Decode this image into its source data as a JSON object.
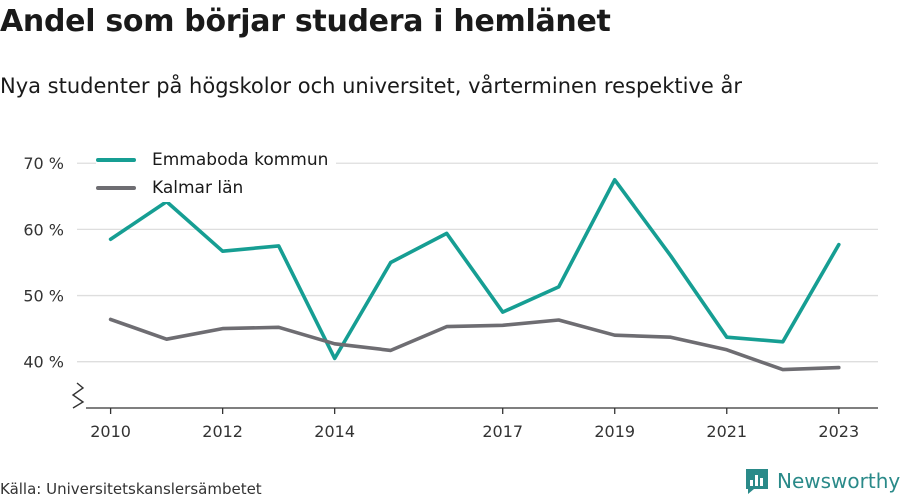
{
  "title": "Andel som börjar studera i hemlänet",
  "subtitle": "Nya studenter på högskolor och universitet, vårterminen respektive år",
  "source": "Källa: Universitetskanslersämbetet",
  "brand": {
    "name": "Newsworthy",
    "color": "#2a8a89"
  },
  "chart_data": {
    "type": "line",
    "x": [
      2010,
      2011,
      2012,
      2013,
      2014,
      2015,
      2016,
      2017,
      2018,
      2019,
      2020,
      2021,
      2022,
      2023
    ],
    "x_tick_values": [
      2010,
      2012,
      2014,
      2017,
      2019,
      2021,
      2023
    ],
    "x_tick_labels": [
      "2010",
      "2012",
      "2014",
      "2017",
      "2019",
      "2021",
      "2023"
    ],
    "y_tick_values": [
      40,
      50,
      60,
      70
    ],
    "y_tick_labels": [
      "40 %",
      "50 %",
      "60 %",
      "70 %"
    ],
    "ylim": [
      33,
      72
    ],
    "xlim": [
      2009.4,
      2023.7
    ],
    "y_axis_break": true,
    "grid": true,
    "legend_position": "top-left",
    "series": [
      {
        "name": "Emmaboda kommun",
        "color": "#169e93",
        "values": [
          58.5,
          64.2,
          56.7,
          57.5,
          40.5,
          55.0,
          59.4,
          47.5,
          51.3,
          67.5,
          56.0,
          43.7,
          43.0,
          57.7
        ]
      },
      {
        "name": "Kalmar län",
        "color": "#6e6d72",
        "values": [
          46.4,
          43.4,
          45.0,
          45.2,
          42.7,
          41.7,
          45.3,
          45.5,
          46.3,
          44.0,
          43.7,
          41.8,
          38.8,
          39.1
        ]
      }
    ]
  }
}
